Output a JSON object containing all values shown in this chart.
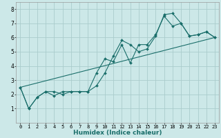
{
  "xlabel": "Humidex (Indice chaleur)",
  "bg_color": "#cce8e8",
  "grid_color": "#aacccc",
  "line_color": "#1a6e6a",
  "xlim": [
    -0.5,
    23.5
  ],
  "ylim": [
    0,
    8.5
  ],
  "xticks": [
    0,
    1,
    2,
    3,
    4,
    5,
    6,
    7,
    8,
    9,
    10,
    11,
    12,
    13,
    14,
    15,
    16,
    17,
    18,
    19,
    20,
    21,
    22,
    23
  ],
  "yticks": [
    1,
    2,
    3,
    4,
    5,
    6,
    7,
    8
  ],
  "series1_x": [
    0,
    1,
    2,
    3,
    4,
    5,
    6,
    7,
    8,
    9,
    10,
    11,
    12,
    13,
    14,
    15,
    16,
    17,
    18,
    19,
    20,
    21,
    22,
    23
  ],
  "series1_y": [
    2.5,
    1.0,
    1.8,
    2.2,
    2.2,
    2.0,
    2.2,
    2.2,
    2.2,
    2.6,
    3.5,
    4.7,
    5.8,
    5.5,
    5.0,
    5.2,
    6.1,
    7.6,
    7.7,
    7.0,
    6.1,
    6.2,
    6.4,
    6.0
  ],
  "series2_x": [
    0,
    1,
    2,
    3,
    4,
    5,
    6,
    7,
    8,
    9,
    10,
    11,
    12,
    13,
    14,
    15,
    16,
    17,
    18,
    19,
    20,
    21,
    22,
    23
  ],
  "series2_y": [
    2.5,
    1.0,
    1.8,
    2.2,
    1.9,
    2.2,
    2.2,
    2.2,
    2.2,
    3.5,
    4.5,
    4.3,
    5.5,
    4.2,
    5.5,
    5.5,
    6.2,
    7.5,
    6.8,
    7.0,
    6.1,
    6.2,
    6.4,
    6.0
  ],
  "series3_x": [
    0,
    23
  ],
  "series3_y": [
    2.5,
    6.0
  ],
  "tick_fontsize": 5.0,
  "xlabel_fontsize": 6.5,
  "marker_size": 2.0,
  "line_width": 0.8
}
